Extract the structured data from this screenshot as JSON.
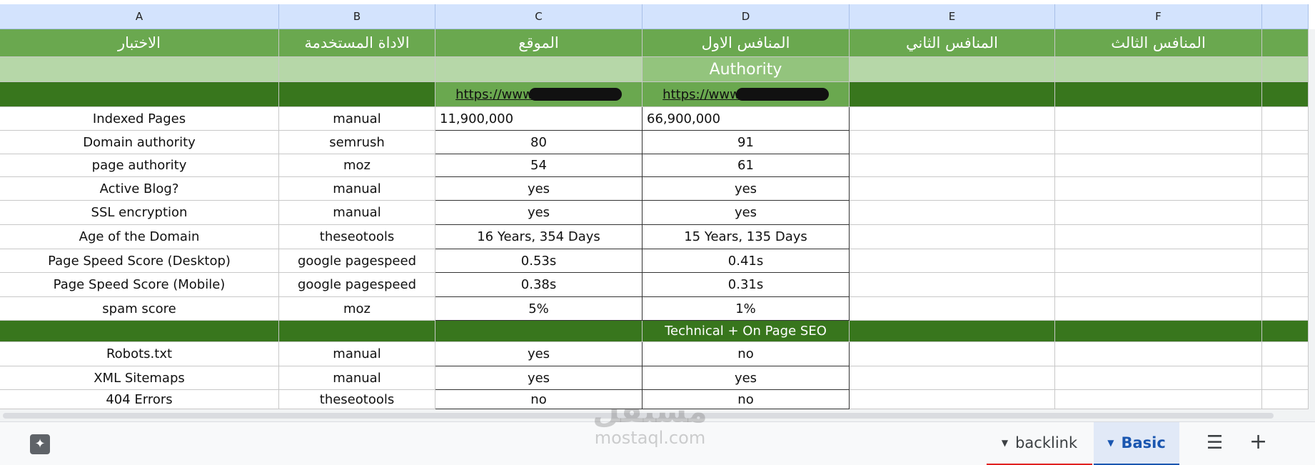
{
  "columns": [
    "A",
    "B",
    "C",
    "D",
    "E",
    "F"
  ],
  "header": [
    "الاختبار",
    "الاداة المستخدمة",
    "الموقع",
    "المنافس الاول",
    "المنافس الثاني",
    "المنافس الثالث"
  ],
  "section_1": "Authority",
  "urls": [
    "https://www",
    "https://www"
  ],
  "rows_1": [
    [
      "Indexed Pages",
      "manual",
      "11,900,000",
      "66,900,000"
    ],
    [
      "Domain authority",
      "semrush",
      "80",
      "91"
    ],
    [
      "page authority",
      "moz",
      "54",
      "61"
    ],
    [
      "Active Blog?",
      "manual",
      "yes",
      "yes"
    ],
    [
      "SSL encryption",
      "manual",
      "yes",
      "yes"
    ],
    [
      "Age of the Domain",
      "theseotools",
      "16 Years, 354 Days",
      "15 Years, 135 Days"
    ],
    [
      "Page Speed Score (Desktop)",
      "google pagespeed",
      "0.53s",
      "0.41s"
    ],
    [
      "Page Speed Score (Mobile)",
      "google pagespeed",
      "0.38s",
      "0.31s"
    ],
    [
      "spam score",
      "moz",
      "5%",
      "1%"
    ]
  ],
  "section_2": "Technical + On Page  SEO",
  "rows_2": [
    [
      "Robots.txt",
      "manual",
      "yes",
      "no"
    ],
    [
      "XML Sitemaps",
      "manual",
      "yes",
      "yes"
    ],
    [
      "404 Errors",
      "theseotools",
      "no",
      "no"
    ]
  ],
  "sheet_tabs": [
    "backlink",
    "Basic"
  ],
  "watermark": {
    "arabic": "مستقل",
    "latin": "mostaql.com"
  }
}
